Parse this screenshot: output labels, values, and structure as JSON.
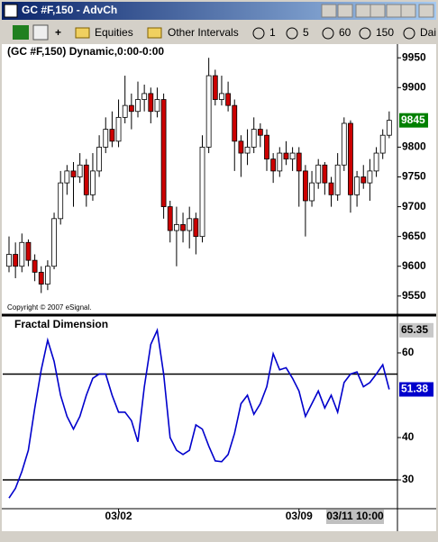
{
  "window": {
    "title": "GC #F,150 - AdvCh"
  },
  "toolbar": {
    "items": [
      "Equities",
      "Other Intervals",
      "1",
      "5",
      "60",
      "150",
      "Dai"
    ]
  },
  "chart_data": [
    {
      "type": "candlestick",
      "title": "(GC #F,150) Dynamic,0:00-0:00",
      "copyright": "Copyright © 2007 eSignal.",
      "open": [
        9600,
        9620,
        9600,
        9640,
        9610,
        9590,
        9570,
        9600,
        9680,
        9740,
        9760,
        9750,
        9770,
        9720,
        9760,
        9800,
        9830,
        9810,
        9850,
        9870,
        9860,
        9880,
        9890,
        9860,
        9880,
        9700,
        9660,
        9670,
        9660,
        9680,
        9650,
        9800,
        9920,
        9880,
        9890,
        9870,
        9810,
        9790,
        9800,
        9830,
        9820,
        9780,
        9760,
        9790,
        9780,
        9790,
        9760,
        9710,
        9740,
        9770,
        9740,
        9720,
        9770,
        9840,
        9720,
        9750,
        9740,
        9760,
        9790,
        9820
      ],
      "high": [
        9650,
        9640,
        9655,
        9645,
        9620,
        9600,
        9610,
        9690,
        9760,
        9770,
        9775,
        9790,
        9780,
        9790,
        9820,
        9850,
        9860,
        9880,
        9920,
        9890,
        9910,
        9905,
        9900,
        9900,
        9890,
        9710,
        9700,
        9690,
        9700,
        9690,
        9820,
        9950,
        9930,
        9920,
        9910,
        9880,
        9820,
        9830,
        9850,
        9840,
        9830,
        9790,
        9800,
        9810,
        9800,
        9800,
        9770,
        9760,
        9780,
        9775,
        9750,
        9790,
        9850,
        9845,
        9760,
        9770,
        9780,
        9800,
        9830,
        9860
      ],
      "low": [
        9590,
        9580,
        9590,
        9600,
        9575,
        9555,
        9560,
        9595,
        9670,
        9720,
        9700,
        9740,
        9700,
        9710,
        9750,
        9790,
        9800,
        9800,
        9840,
        9830,
        9850,
        9860,
        9840,
        9850,
        9680,
        9640,
        9600,
        9640,
        9630,
        9620,
        9640,
        9790,
        9870,
        9870,
        9860,
        9760,
        9750,
        9770,
        9790,
        9800,
        9760,
        9740,
        9750,
        9770,
        9760,
        9700,
        9650,
        9700,
        9730,
        9720,
        9700,
        9710,
        9760,
        9690,
        9700,
        9730,
        9710,
        9750,
        9780,
        9815
      ],
      "close": [
        9620,
        9600,
        9640,
        9610,
        9590,
        9570,
        9600,
        9680,
        9740,
        9760,
        9750,
        9770,
        9720,
        9760,
        9800,
        9830,
        9810,
        9850,
        9870,
        9860,
        9880,
        9890,
        9860,
        9880,
        9700,
        9660,
        9670,
        9660,
        9680,
        9650,
        9800,
        9920,
        9880,
        9890,
        9870,
        9810,
        9790,
        9800,
        9830,
        9820,
        9780,
        9760,
        9790,
        9780,
        9790,
        9760,
        9710,
        9740,
        9770,
        9740,
        9720,
        9770,
        9840,
        9720,
        9750,
        9740,
        9760,
        9790,
        9820,
        9845
      ],
      "up_color": "#ffffff",
      "down_color": "#cc0000",
      "last_color": "#008000",
      "ylim": [
        9521,
        9973
      ],
      "yticks": [
        9550,
        9600,
        9650,
        9700,
        9750,
        9800,
        9900,
        9950
      ]
    },
    {
      "type": "line",
      "title": "Fractal Dimension",
      "color": "#0000cc",
      "values": [
        25.7,
        28,
        32,
        37,
        47,
        56,
        63,
        58,
        50,
        45,
        42,
        45,
        50,
        54,
        55,
        55,
        50,
        46,
        46,
        44,
        39,
        52,
        62,
        65.35,
        55,
        40,
        37,
        36,
        37,
        43,
        42,
        38,
        34.5,
        34.3,
        36,
        41,
        48,
        50,
        45.5,
        48,
        52,
        59.8,
        56,
        56.5,
        54,
        51,
        45,
        48,
        51,
        47,
        50,
        46,
        53,
        55,
        55.5,
        52,
        53,
        55,
        57.2,
        51.38
      ],
      "ylim": [
        23.2,
        68.5
      ],
      "yticks": [
        30,
        40,
        60
      ],
      "hlines": [
        55,
        30
      ],
      "xticks": [
        {
          "value": 17,
          "label": "03/02"
        },
        {
          "value": 45,
          "label": "03/09"
        }
      ],
      "cursor_label": "03/11 10:00"
    }
  ]
}
